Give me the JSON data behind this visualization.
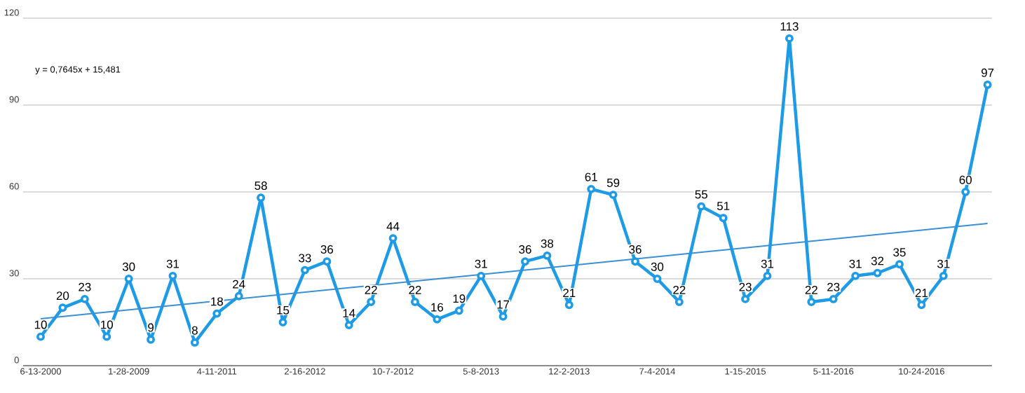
{
  "chart_data": {
    "type": "line",
    "categories": [
      "6-13-2000",
      null,
      null,
      null,
      "1-28-2009",
      null,
      null,
      null,
      "4-11-2011",
      null,
      null,
      null,
      "2-16-2012",
      null,
      null,
      null,
      "10-7-2012",
      null,
      null,
      null,
      "5-8-2013",
      null,
      null,
      null,
      "12-2-2013",
      null,
      null,
      null,
      "7-4-2014",
      null,
      null,
      null,
      "1-15-2015",
      null,
      null,
      null,
      "5-11-2016",
      null,
      null,
      null,
      "10-24-2016",
      null,
      null,
      null
    ],
    "series": [
      {
        "color": "#1e9be6",
        "marker": "circle",
        "values": [
          10,
          20,
          23,
          10,
          30,
          9,
          31,
          8,
          18,
          24,
          58,
          15,
          33,
          36,
          14,
          22,
          44,
          22,
          16,
          19,
          31,
          17,
          36,
          38,
          21,
          61,
          59,
          36,
          30,
          22,
          55,
          51,
          23,
          31,
          113,
          22,
          23,
          31,
          32,
          35,
          21,
          31,
          60,
          97
        ],
        "value_labels": [
          "10",
          "20",
          "23",
          "10",
          "30",
          "9",
          "31",
          "8",
          "18",
          "24",
          "58",
          "15",
          "33",
          "36",
          "14",
          "22",
          "44",
          "22",
          "16",
          "19",
          "31",
          "17",
          "36",
          "38",
          "21",
          "61",
          "59",
          "36",
          "30",
          "22",
          "55",
          "51",
          "23",
          "31",
          "113",
          "22",
          "23",
          "31",
          "32",
          "35",
          "21",
          "31",
          "60",
          "97"
        ]
      },
      {
        "color": "#3b8fd4",
        "marker": "none",
        "values": [
          16.2,
          null,
          null,
          null,
          null,
          null,
          null,
          null,
          null,
          null,
          null,
          null,
          null,
          null,
          null,
          null,
          null,
          null,
          null,
          null,
          null,
          null,
          null,
          null,
          null,
          null,
          null,
          null,
          null,
          null,
          null,
          null,
          null,
          null,
          null,
          null,
          null,
          null,
          null,
          null,
          null,
          null,
          null,
          49.1
        ]
      }
    ],
    "annotations": [
      "y = 0,7645x + 15,481"
    ],
    "ylim": [
      0,
      120
    ],
    "yticks": [
      0,
      30,
      60,
      90,
      120
    ],
    "grid": "y"
  }
}
